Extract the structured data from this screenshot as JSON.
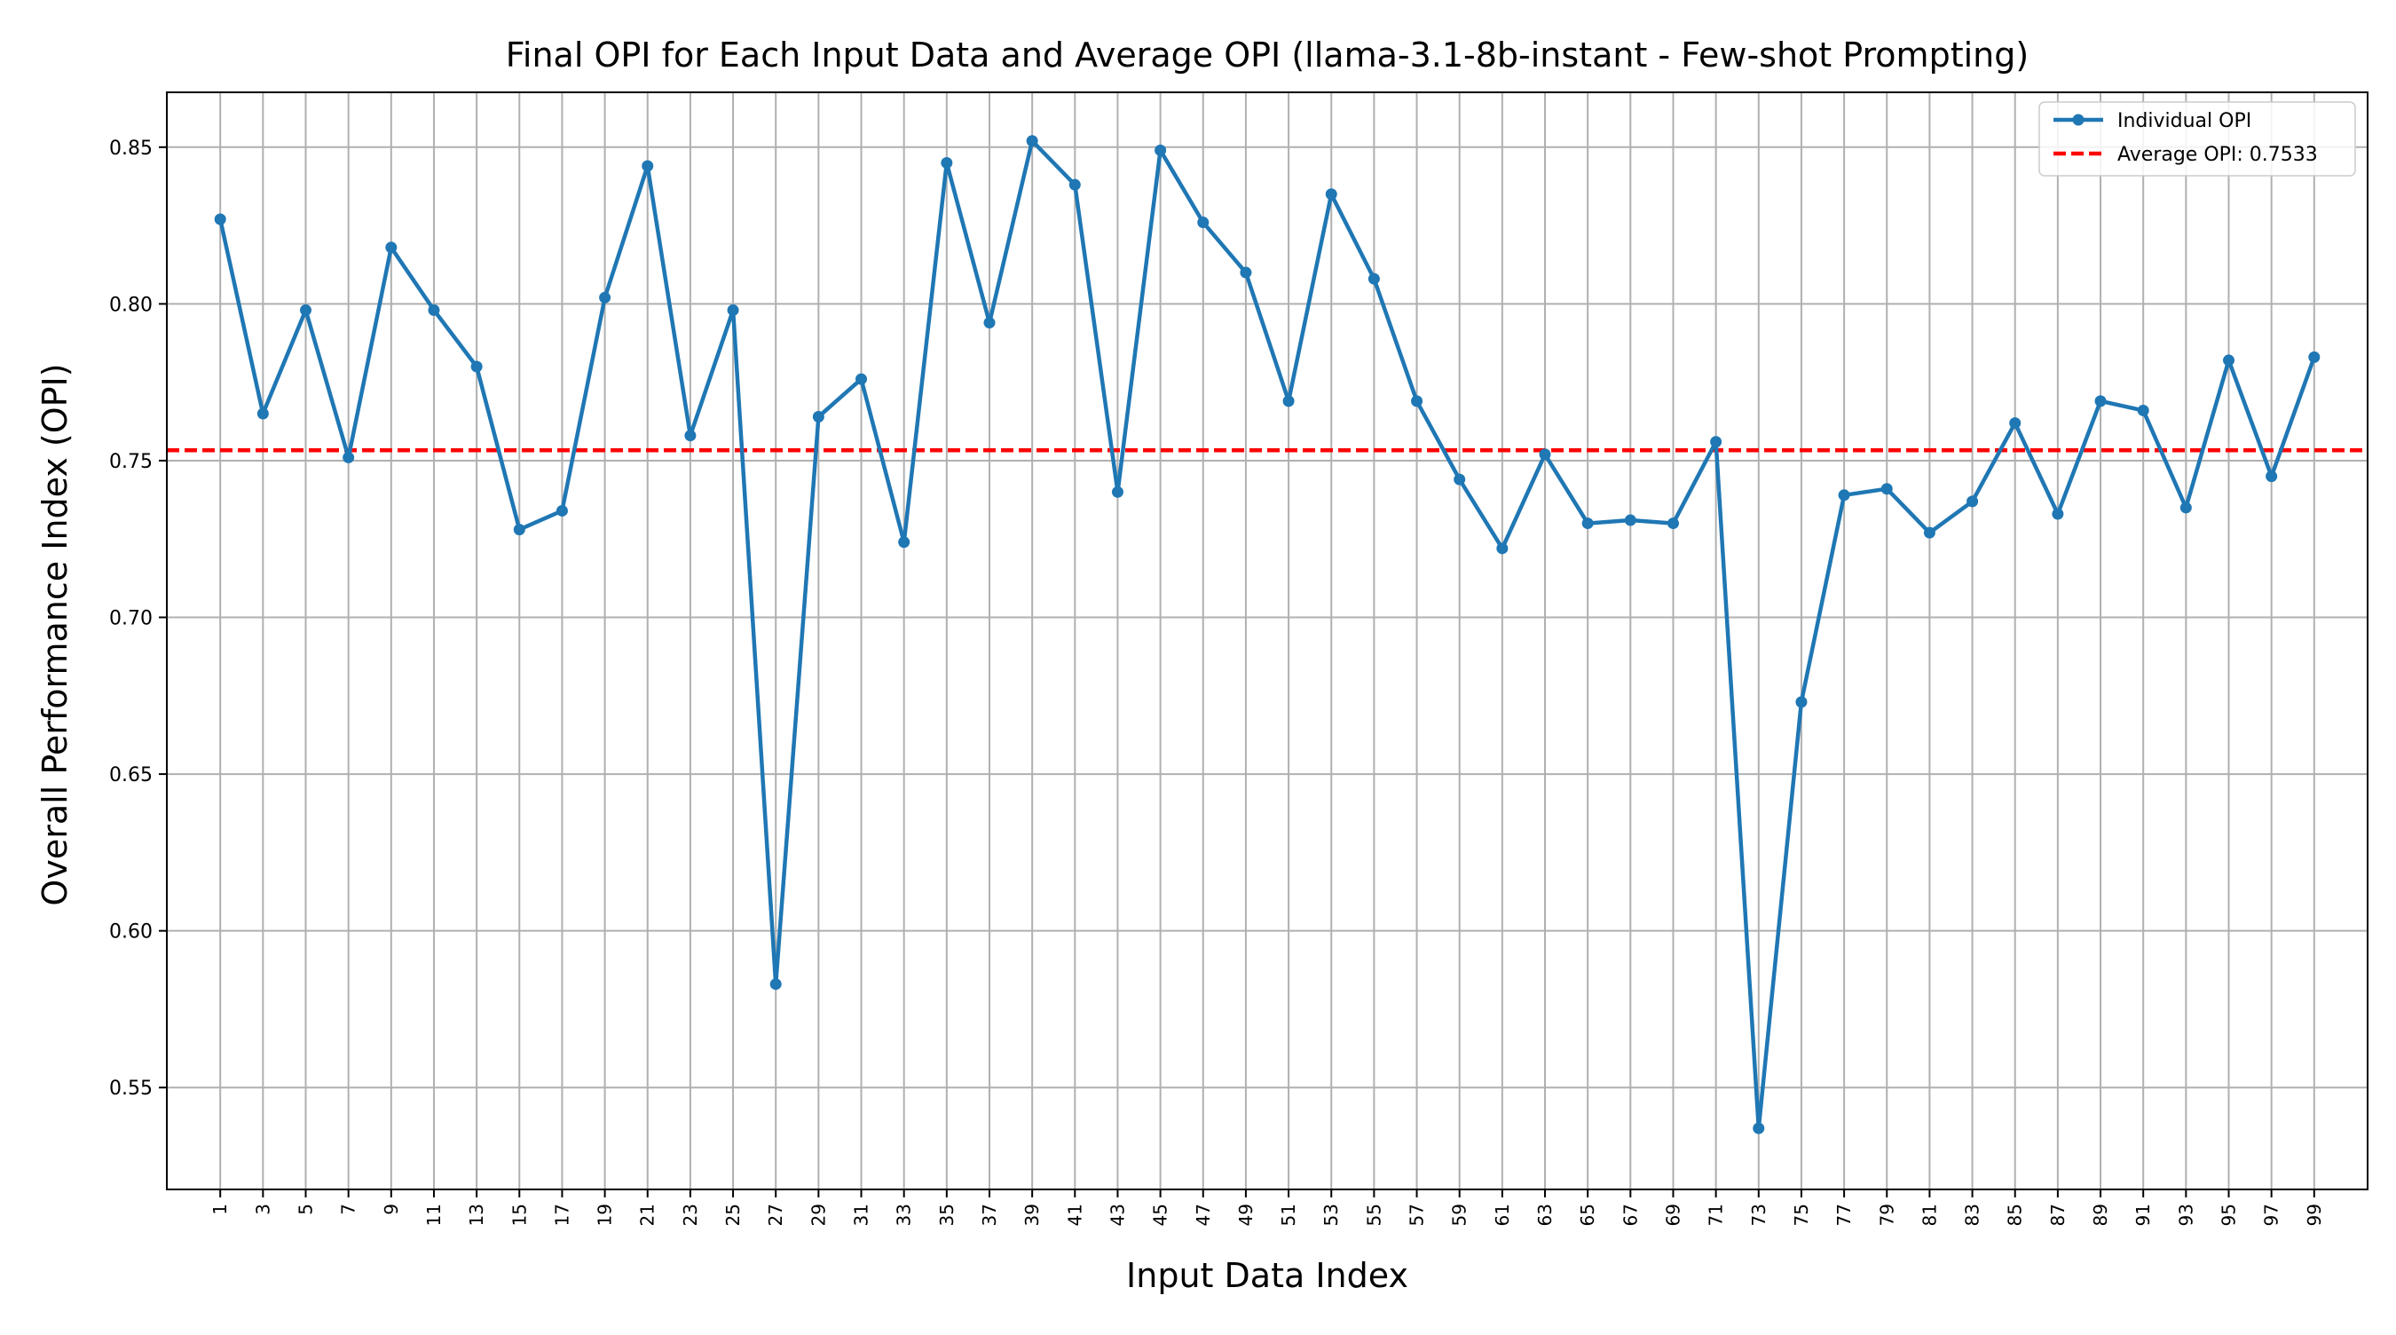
{
  "chart_data": {
    "type": "line",
    "title": "Final OPI for Each Input Data and Average OPI (llama-3.1-8b-instant - Few-shot Prompting)",
    "xlabel": "Input Data Index",
    "ylabel": "Overall Performance Index (OPI)",
    "xlim": [
      -1.5,
      101.5
    ],
    "ylim": [
      0.5175,
      0.8675
    ],
    "x_ticks": [
      1,
      3,
      5,
      7,
      9,
      11,
      13,
      15,
      17,
      19,
      21,
      23,
      25,
      27,
      29,
      31,
      33,
      35,
      37,
      39,
      41,
      43,
      45,
      47,
      49,
      51,
      53,
      55,
      57,
      59,
      61,
      63,
      65,
      67,
      69,
      71,
      73,
      75,
      77,
      79,
      81,
      83,
      85,
      87,
      89,
      91,
      93,
      95,
      97,
      99
    ],
    "y_ticks": [
      0.55,
      0.6,
      0.65,
      0.7,
      0.75,
      0.8,
      0.85
    ],
    "y_tick_labels": [
      "0.55",
      "0.60",
      "0.65",
      "0.70",
      "0.75",
      "0.80",
      "0.85"
    ],
    "grid": true,
    "legend_position": "top-right",
    "series": [
      {
        "name": "Individual OPI",
        "color": "#1f77b4",
        "style": "solid line with circle markers",
        "x": [
          1,
          3,
          5,
          7,
          9,
          11,
          13,
          15,
          17,
          19,
          21,
          23,
          25,
          27,
          29,
          31,
          33,
          35,
          37,
          39,
          41,
          43,
          45,
          47,
          49,
          51,
          53,
          55,
          57,
          59,
          61,
          63,
          65,
          67,
          69,
          71,
          73,
          75,
          77,
          79,
          81,
          83,
          85,
          87,
          89,
          91,
          93,
          95,
          97,
          99
        ],
        "values": [
          0.827,
          0.765,
          0.798,
          0.751,
          0.818,
          0.798,
          0.78,
          0.728,
          0.734,
          0.802,
          0.844,
          0.758,
          0.798,
          0.583,
          0.764,
          0.776,
          0.724,
          0.845,
          0.794,
          0.852,
          0.838,
          0.74,
          0.849,
          0.826,
          0.81,
          0.769,
          0.835,
          0.808,
          0.769,
          0.744,
          0.722,
          0.752,
          0.73,
          0.731,
          0.73,
          0.756,
          0.537,
          0.673,
          0.739,
          0.741,
          0.727,
          0.737,
          0.762,
          0.733,
          0.769,
          0.766,
          0.735,
          0.782,
          0.745,
          0.783
        ]
      },
      {
        "name": "Average OPI: 0.7533",
        "color": "#ff0000",
        "style": "dashed horizontal line",
        "value": 0.7533
      }
    ]
  }
}
